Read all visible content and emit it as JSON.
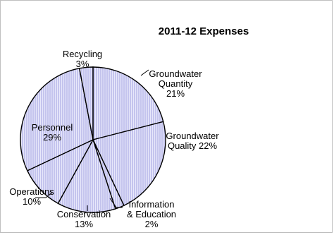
{
  "chart_data": {
    "type": "pie",
    "title": "2011-12 Expenses",
    "slices": [
      {
        "label_lines": [
          "Groundwater",
          "Quantity",
          "21%"
        ],
        "value": 21
      },
      {
        "label_lines": [
          "Groundwater",
          "Quality 22%"
        ],
        "value": 22
      },
      {
        "label_lines": [
          "Information",
          "& Education"
        ],
        "value_text": "2%",
        "value": 2
      },
      {
        "label_lines": [
          "Conservation",
          "13%"
        ],
        "value": 13
      },
      {
        "label_lines": [
          "Operations",
          "10%"
        ],
        "value": 10
      },
      {
        "label_lines": [
          "Personnel",
          "29%"
        ],
        "value": 29
      },
      {
        "label_lines": [
          "Recycling",
          "3%"
        ],
        "value": 3
      }
    ],
    "fill_color": "#e8e8fb",
    "hatch_color": "#8f8fd9",
    "stroke_color": "#000000",
    "legend": "none"
  }
}
